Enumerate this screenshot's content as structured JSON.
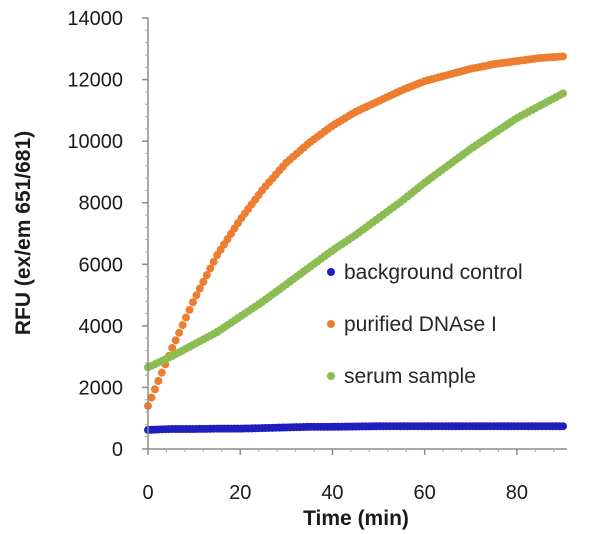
{
  "chart_data": {
    "type": "scatter",
    "title": "",
    "xlabel": "Time (min)",
    "ylabel": "RFU (ex/em 651/681)",
    "xlim": [
      0,
      90
    ],
    "ylim": [
      0,
      14000
    ],
    "x_ticks": [
      0,
      20,
      40,
      60,
      80
    ],
    "x_tick_labels": [
      "0",
      "20",
      "40",
      "60",
      "80"
    ],
    "y_ticks": [
      0,
      2000,
      4000,
      6000,
      8000,
      10000,
      12000,
      14000
    ],
    "y_tick_labels": [
      "0",
      "2000",
      "4000",
      "6000",
      "8000",
      "10000",
      "12000",
      "14000"
    ],
    "grid": false,
    "legend_position": "right",
    "series": [
      {
        "name": "background control",
        "color": "#1f1fbf",
        "x": [
          0,
          5,
          10,
          15,
          20,
          25,
          30,
          35,
          40,
          45,
          50,
          55,
          60,
          65,
          70,
          75,
          80,
          85,
          90
        ],
        "y": [
          620,
          650,
          650,
          660,
          660,
          680,
          700,
          720,
          720,
          730,
          740,
          740,
          740,
          740,
          740,
          740,
          740,
          740,
          740
        ]
      },
      {
        "name": "purified DNAse I",
        "color": "#ed7d31",
        "x": [
          0,
          5,
          10,
          15,
          20,
          25,
          30,
          35,
          40,
          45,
          50,
          55,
          60,
          65,
          70,
          75,
          80,
          85,
          90
        ],
        "y": [
          1400,
          3200,
          4850,
          6300,
          7450,
          8450,
          9300,
          9950,
          10500,
          10950,
          11300,
          11650,
          11950,
          12150,
          12350,
          12500,
          12600,
          12700,
          12750
        ]
      },
      {
        "name": "serum sample",
        "color": "#8cbd52",
        "x": [
          0,
          5,
          10,
          15,
          20,
          25,
          30,
          35,
          40,
          45,
          50,
          55,
          60,
          65,
          70,
          75,
          80,
          85,
          90
        ],
        "y": [
          2650,
          3000,
          3400,
          3800,
          4300,
          4800,
          5350,
          5900,
          6450,
          6950,
          7500,
          8050,
          8650,
          9200,
          9750,
          10250,
          10750,
          11150,
          11550
        ]
      }
    ]
  }
}
